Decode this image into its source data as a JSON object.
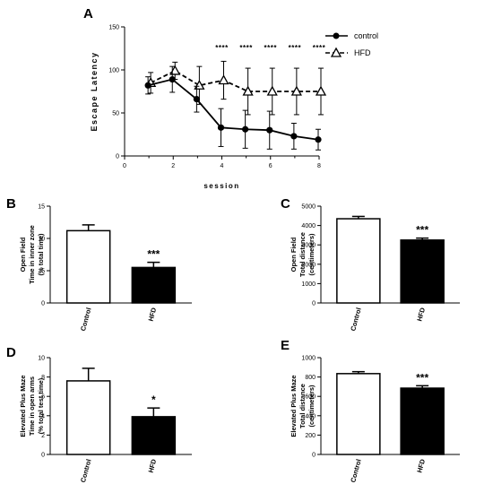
{
  "panels": [
    {
      "letter": "A"
    },
    {
      "letter": "B"
    },
    {
      "letter": "C"
    },
    {
      "letter": "D"
    },
    {
      "letter": "E"
    }
  ],
  "chart_data": [
    {
      "id": "A",
      "type": "line",
      "title": "",
      "xlabel": "session",
      "ylabel": "Escape Latency",
      "xlim": [
        0,
        8
      ],
      "ylim": [
        0,
        150
      ],
      "xticks": [
        0,
        2,
        4,
        6,
        8
      ],
      "yticks": [
        0,
        50,
        100,
        150
      ],
      "legend": "top-right",
      "series": [
        {
          "name": "control",
          "marker": "filled-circle",
          "line": "solid",
          "x": [
            1,
            2,
            3,
            4,
            5,
            6,
            7,
            8
          ],
          "values": [
            82,
            89,
            66,
            33,
            31,
            30,
            23,
            19
          ],
          "errors": [
            10,
            15,
            15,
            22,
            22,
            22,
            15,
            12
          ]
        },
        {
          "name": "HFD",
          "marker": "open-triangle",
          "line": "dashed",
          "x": [
            1,
            2,
            3,
            4,
            5,
            6,
            7,
            8
          ],
          "values": [
            85,
            99,
            82,
            88,
            75,
            75,
            75,
            75
          ],
          "errors": [
            12,
            10,
            22,
            22,
            27,
            27,
            27,
            27
          ]
        }
      ],
      "annotations": [
        {
          "x": 4,
          "text": "****"
        },
        {
          "x": 5,
          "text": "****"
        },
        {
          "x": 6,
          "text": "****"
        },
        {
          "x": 7,
          "text": "****"
        },
        {
          "x": 8,
          "text": "****"
        }
      ]
    },
    {
      "id": "B",
      "type": "bar",
      "ylabel_lines": [
        "Open Field",
        "Time in inner zone",
        "(% total time)"
      ],
      "categories": [
        "Control",
        "HFD"
      ],
      "values": [
        11.2,
        5.5
      ],
      "errors": [
        0.9,
        0.8
      ],
      "ylim": [
        0,
        15
      ],
      "yticks": [
        0,
        5,
        10,
        15
      ],
      "significance": [
        "",
        "***"
      ]
    },
    {
      "id": "C",
      "type": "bar",
      "ylabel_lines": [
        "Open Field",
        "Total distance",
        "(centimeters)"
      ],
      "categories": [
        "Control",
        "HFD"
      ],
      "values": [
        4350,
        3250
      ],
      "errors": [
        120,
        100
      ],
      "ylim": [
        0,
        5000
      ],
      "yticks": [
        0,
        1000,
        2000,
        3000,
        4000,
        5000
      ],
      "significance": [
        "",
        "***"
      ]
    },
    {
      "id": "D",
      "type": "bar",
      "ylabel_lines": [
        "Elevated Plus Maze",
        "Time in open arms",
        "(% total test time)"
      ],
      "categories": [
        "Control",
        "HFD"
      ],
      "values": [
        7.6,
        3.9
      ],
      "errors": [
        1.3,
        0.9
      ],
      "ylim": [
        0,
        10
      ],
      "yticks": [
        0,
        2,
        4,
        6,
        8,
        10
      ],
      "significance": [
        "",
        "*"
      ]
    },
    {
      "id": "E",
      "type": "bar",
      "ylabel_lines": [
        "Elevated Plus Maze",
        "Total distance",
        "(centimeters)"
      ],
      "categories": [
        "Control",
        "HFD"
      ],
      "values": [
        835,
        685
      ],
      "errors": [
        20,
        25
      ],
      "ylim": [
        0,
        1000
      ],
      "yticks": [
        0,
        200,
        400,
        600,
        800,
        1000
      ],
      "significance": [
        "",
        "***"
      ]
    }
  ],
  "colors": {
    "axis": "#000000",
    "control_bar": "#ffffff",
    "hfd_bar": "#000000",
    "ink": "#000000"
  }
}
